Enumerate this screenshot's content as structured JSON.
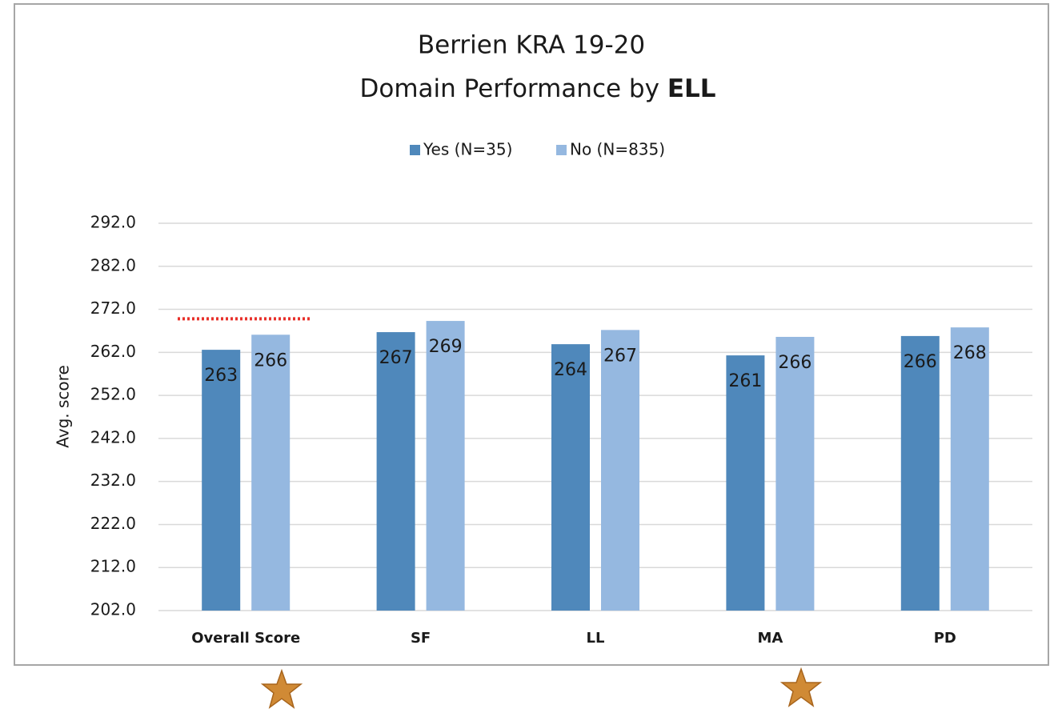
{
  "chart_data": {
    "type": "bar",
    "title": "Berrien KRA 19-20",
    "subtitle": "Domain Performance by",
    "subtitle_emphasis": "ELL",
    "y_label": "Avg. score",
    "categories": [
      "Overall Score",
      "SF",
      "LL",
      "MA",
      "PD"
    ],
    "series": [
      {
        "name": "Yes (N=35)",
        "color": "#4f88bb",
        "values": [
          262.6,
          266.7,
          263.9,
          261.3,
          265.8
        ],
        "value_labels": [
          "263",
          "267",
          "264",
          "261",
          "266"
        ]
      },
      {
        "name": "No (N=835)",
        "color": "#95b8e0",
        "values": [
          266.1,
          269.3,
          267.2,
          265.6,
          267.8
        ],
        "value_labels": [
          "266",
          "269",
          "267",
          "266",
          "268"
        ]
      }
    ],
    "ylim": [
      202,
      292
    ],
    "yticks": [
      {
        "value": 202,
        "label": "202.0"
      },
      {
        "value": 212,
        "label": "212.0"
      },
      {
        "value": 222,
        "label": "222.0"
      },
      {
        "value": 232,
        "label": "232.0"
      },
      {
        "value": 242,
        "label": "242.0"
      },
      {
        "value": 252,
        "label": "252.0"
      },
      {
        "value": 262,
        "label": "262.0"
      },
      {
        "value": 272,
        "label": "272.0"
      },
      {
        "value": 282,
        "label": "282.0"
      },
      {
        "value": 292,
        "label": "292.0"
      }
    ],
    "grid": true,
    "legend": "top",
    "reference_line": {
      "value": 269.8,
      "color": "#e8302a"
    }
  }
}
